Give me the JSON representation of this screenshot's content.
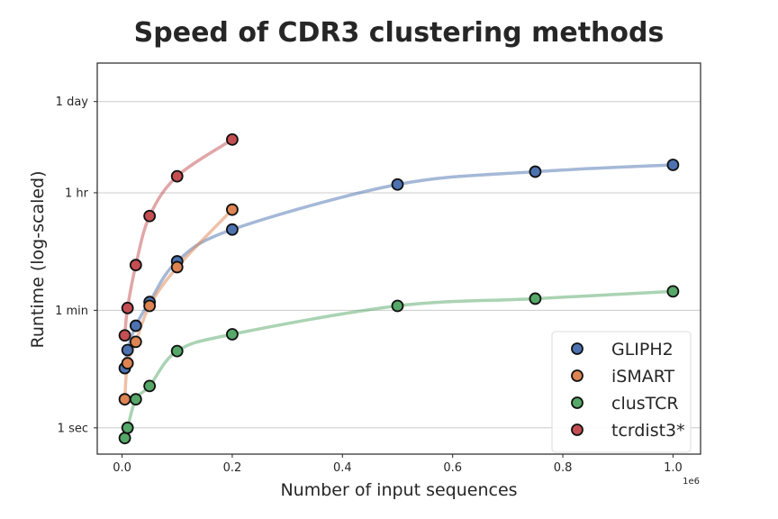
{
  "chart_data": {
    "type": "line",
    "title": "Speed of CDR3 clustering methods",
    "xlabel": "Number of input sequences",
    "ylabel": "Runtime (log-scaled)",
    "x_offset_label": "1e6",
    "xlim": [
      -0.045,
      1.05
    ],
    "ylim_seconds": [
      0.4,
      330000
    ],
    "yscale": "log",
    "x_ticks": [
      0.0,
      0.2,
      0.4,
      0.6,
      0.8,
      1.0
    ],
    "x_tick_labels": [
      "0.0",
      "0.2",
      "0.4",
      "0.6",
      "0.8",
      "1.0"
    ],
    "y_ticks_seconds": [
      1,
      60,
      3600,
      86400
    ],
    "y_tick_labels": [
      "1 sec",
      "1 min",
      "1 hr",
      "1 day"
    ],
    "grid": "horizontal",
    "legend_position": "lower-right",
    "series": [
      {
        "name": "GLIPH2",
        "color": "#4c72b0",
        "x": [
          0.005,
          0.01,
          0.025,
          0.05,
          0.1,
          0.2,
          0.5,
          0.75,
          1.0
        ],
        "y_seconds": [
          8,
          15,
          35,
          80,
          330,
          1000,
          4800,
          7500,
          9500
        ]
      },
      {
        "name": "iSMART",
        "color": "#dd8452",
        "x": [
          0.005,
          0.01,
          0.025,
          0.05,
          0.1,
          0.2
        ],
        "y_seconds": [
          2.7,
          9.5,
          20,
          70,
          270,
          2000
        ]
      },
      {
        "name": "clusTCR",
        "color": "#55a868",
        "x": [
          0.005,
          0.01,
          0.025,
          0.05,
          0.1,
          0.2,
          0.5,
          0.75,
          1.0
        ],
        "y_seconds": [
          0.7,
          1.0,
          2.7,
          4.3,
          14.5,
          26,
          70,
          90,
          116
        ]
      },
      {
        "name": "tcrdist3*",
        "color": "#c44e52",
        "x": [
          0.005,
          0.01,
          0.025,
          0.05,
          0.1,
          0.2
        ],
        "y_seconds": [
          25,
          65,
          290,
          1600,
          6400,
          23000
        ]
      }
    ]
  }
}
